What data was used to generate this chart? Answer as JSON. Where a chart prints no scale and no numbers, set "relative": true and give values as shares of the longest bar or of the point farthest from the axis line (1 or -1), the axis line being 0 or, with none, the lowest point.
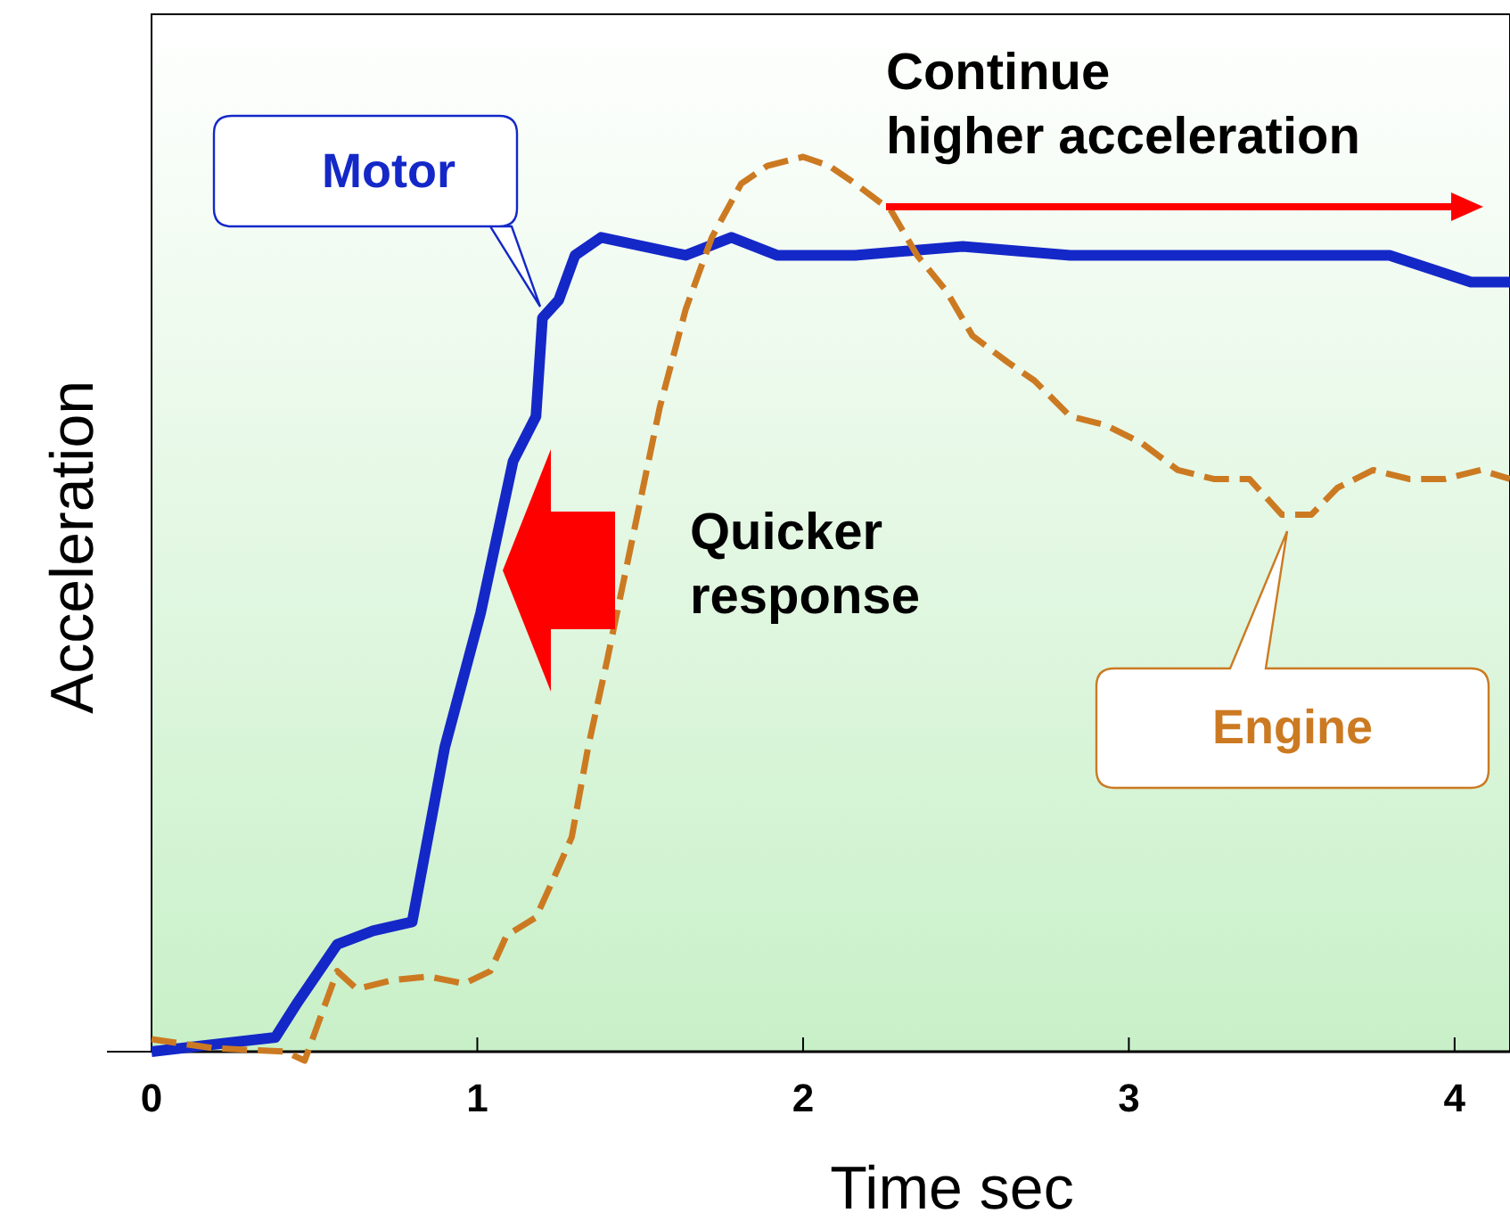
{
  "chart_data": {
    "type": "line",
    "relative": true,
    "xlabel": "Time sec",
    "ylabel": "Acceleration",
    "xlim": [
      0,
      4.17
    ],
    "xticks": [
      0,
      1,
      2,
      3,
      4
    ],
    "marker": "none",
    "series": [
      {
        "name": "Motor",
        "color": "#1428c8",
        "line_style": "solid",
        "x": [
          0,
          0.38,
          0.45,
          0.57,
          0.68,
          0.8,
          0.9,
          1.01,
          1.11,
          1.18,
          1.2,
          1.25,
          1.3,
          1.38,
          1.64,
          1.78,
          1.92,
          2.16,
          2.49,
          2.82,
          3.8,
          4.05,
          4.17
        ],
        "values": [
          0,
          0.016,
          0.056,
          0.12,
          0.135,
          0.145,
          0.34,
          0.49,
          0.66,
          0.71,
          0.82,
          0.84,
          0.89,
          0.91,
          0.89,
          0.91,
          0.89,
          0.89,
          0.9,
          0.89,
          0.89,
          0.86,
          0.86
        ]
      },
      {
        "name": "Engine",
        "color": "#cc7a22",
        "line_style": "dashed",
        "x": [
          0,
          0.19,
          0.41,
          0.47,
          0.51,
          0.57,
          0.63,
          0.74,
          0.85,
          0.96,
          1.04,
          1.09,
          1.18,
          1.23,
          1.29,
          1.34,
          1.4,
          1.48,
          1.56,
          1.64,
          1.72,
          1.81,
          1.89,
          2,
          2.08,
          2.16,
          2.27,
          2.35,
          2.44,
          2.52,
          2.63,
          2.71,
          2.82,
          2.93,
          3.04,
          3.15,
          3.26,
          3.37,
          3.47,
          3.56,
          3.64,
          3.75,
          3.86,
          3.97,
          4.08,
          4.17
        ],
        "values": [
          0.014,
          0.004,
          0,
          -0.01,
          0.03,
          0.09,
          0.07,
          0.08,
          0.084,
          0.076,
          0.09,
          0.13,
          0.15,
          0.19,
          0.24,
          0.34,
          0.44,
          0.58,
          0.72,
          0.83,
          0.91,
          0.97,
          0.99,
          1,
          0.99,
          0.97,
          0.94,
          0.89,
          0.85,
          0.8,
          0.77,
          0.75,
          0.71,
          0.7,
          0.68,
          0.65,
          0.64,
          0.64,
          0.6,
          0.6,
          0.63,
          0.65,
          0.64,
          0.64,
          0.65,
          0.64
        ]
      }
    ],
    "annotations": [
      "Quicker response",
      "Continue higher acceleration"
    ]
  }
}
